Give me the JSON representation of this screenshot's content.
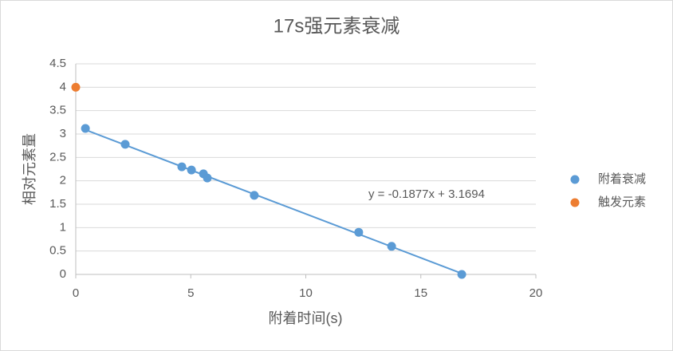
{
  "chart_data": {
    "type": "scatter",
    "title": "17s强元素衰减",
    "x_label": "附着时间(s)",
    "y_label": "相对元素量",
    "xlim": [
      0,
      20
    ],
    "xticks": [
      0,
      5,
      10,
      15,
      20
    ],
    "ylim": [
      0,
      4.5
    ],
    "yticks": [
      0,
      0.5,
      1,
      1.5,
      2,
      2.5,
      3,
      3.5,
      4,
      4.5
    ],
    "grid": true,
    "legend": "right",
    "series": [
      {
        "name": "附着衰减",
        "color": "#5b9bd5",
        "x": [
          0.42,
          2.15,
          4.61,
          5.03,
          5.55,
          5.72,
          7.76,
          12.3,
          13.73,
          16.78
        ],
        "values": [
          3.12,
          2.78,
          2.3,
          2.23,
          2.15,
          2.06,
          1.69,
          0.9,
          0.6,
          0.0
        ],
        "trendline": {
          "slope": -0.1877,
          "intercept": 3.1694,
          "label": "y = -0.1877x + 3.1694"
        }
      },
      {
        "name": "触发元素",
        "color": "#ed7d31",
        "x": [
          0
        ],
        "values": [
          4
        ]
      }
    ]
  }
}
